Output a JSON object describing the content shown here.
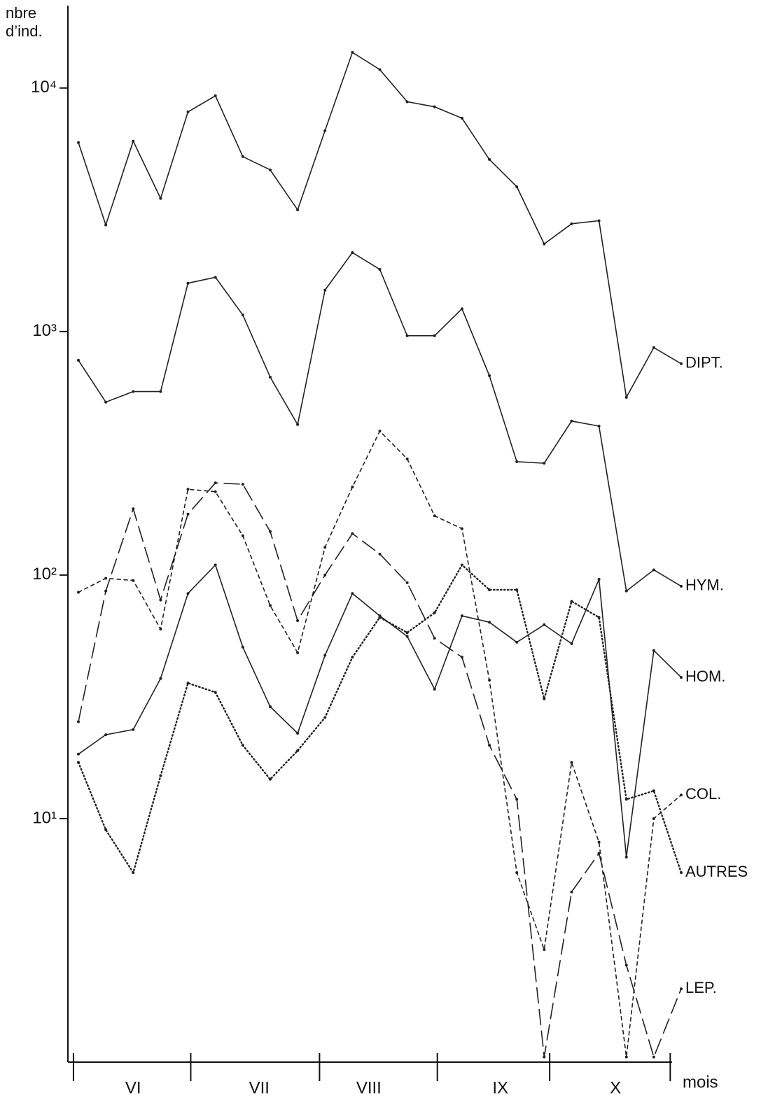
{
  "chart_data": {
    "type": "line",
    "ylabel_lines": [
      "nbre",
      "d’ind."
    ],
    "xlabel": "mois",
    "log_scale_y": true,
    "ylim": [
      1,
      20000
    ],
    "yticks": [
      {
        "value": 10,
        "label": "10¹"
      },
      {
        "value": 100,
        "label": "10²"
      },
      {
        "value": 1000,
        "label": "10³"
      },
      {
        "value": 10000,
        "label": "10⁴"
      }
    ],
    "xlim": [
      -0.383,
      22
    ],
    "xticks": [
      {
        "value": 2.0,
        "label": "VI"
      },
      {
        "value": 6.6,
        "label": "VII"
      },
      {
        "value": 10.6,
        "label": "VIII"
      },
      {
        "value": 15.4,
        "label": "IX"
      },
      {
        "value": 19.6,
        "label": "X"
      }
    ],
    "month_bounds": [
      -0.18,
      4.1,
      8.8,
      13.1,
      17.2,
      21.6
    ],
    "x": [
      0,
      1,
      2,
      3,
      4,
      5,
      6,
      7,
      8,
      9,
      10,
      11,
      12,
      13,
      14,
      15,
      16,
      17,
      18,
      19,
      20,
      21,
      22
    ],
    "series": [
      {
        "name": "DIPT.",
        "color": "#222222",
        "dash": "none",
        "values": [
          5970,
          2740,
          6050,
          3520,
          7980,
          9290,
          5230,
          4610,
          3160,
          6680,
          14000,
          11900,
          8780,
          8370,
          7520,
          5090,
          3930,
          2290,
          2770,
          2850,
          537,
          859,
          738
        ]
      },
      {
        "name": "HYM.",
        "color": "#222222",
        "dash": "none",
        "values": [
          762,
          513,
          567,
          567,
          1580,
          1670,
          1170,
          650,
          415,
          1480,
          2110,
          1800,
          961,
          961,
          1240,
          659,
          292,
          288,
          429,
          409,
          86,
          105,
          90
        ]
      },
      {
        "name": "HOM.",
        "color": "#222222",
        "dash": "none",
        "values": [
          18.4,
          22.1,
          23.2,
          37.6,
          84,
          110,
          50.6,
          28.8,
          22.4,
          46.8,
          84,
          68,
          56,
          34,
          68,
          64,
          53,
          62.5,
          52.3,
          96,
          6.95,
          49,
          38
        ]
      },
      {
        "name": "COL.",
        "color": "#222222",
        "dash": "5,5",
        "values": [
          85,
          97,
          95,
          60,
          225,
          220,
          145,
          75,
          48,
          130,
          230,
          390,
          300,
          175,
          155,
          37,
          6,
          2.9,
          17,
          8,
          1.05,
          10,
          12.5
        ]
      },
      {
        "name": "AUTRES",
        "color": "#222222",
        "dash": "1.5,3.5",
        "values": [
          17,
          9,
          6,
          15,
          36,
          33,
          20,
          14.5,
          19,
          26,
          46,
          67,
          58,
          70,
          110,
          87,
          87,
          31,
          78,
          67,
          12,
          13,
          6
        ]
      },
      {
        "name": "LEP.",
        "color": "#222222",
        "dash": "22,9",
        "values": [
          25,
          86,
          187,
          79,
          178,
          239,
          236,
          151,
          65,
          100,
          148,
          122,
          93,
          55,
          46,
          20,
          12,
          1.05,
          5,
          7.2,
          2.5,
          1.05,
          2.0
        ]
      }
    ]
  }
}
